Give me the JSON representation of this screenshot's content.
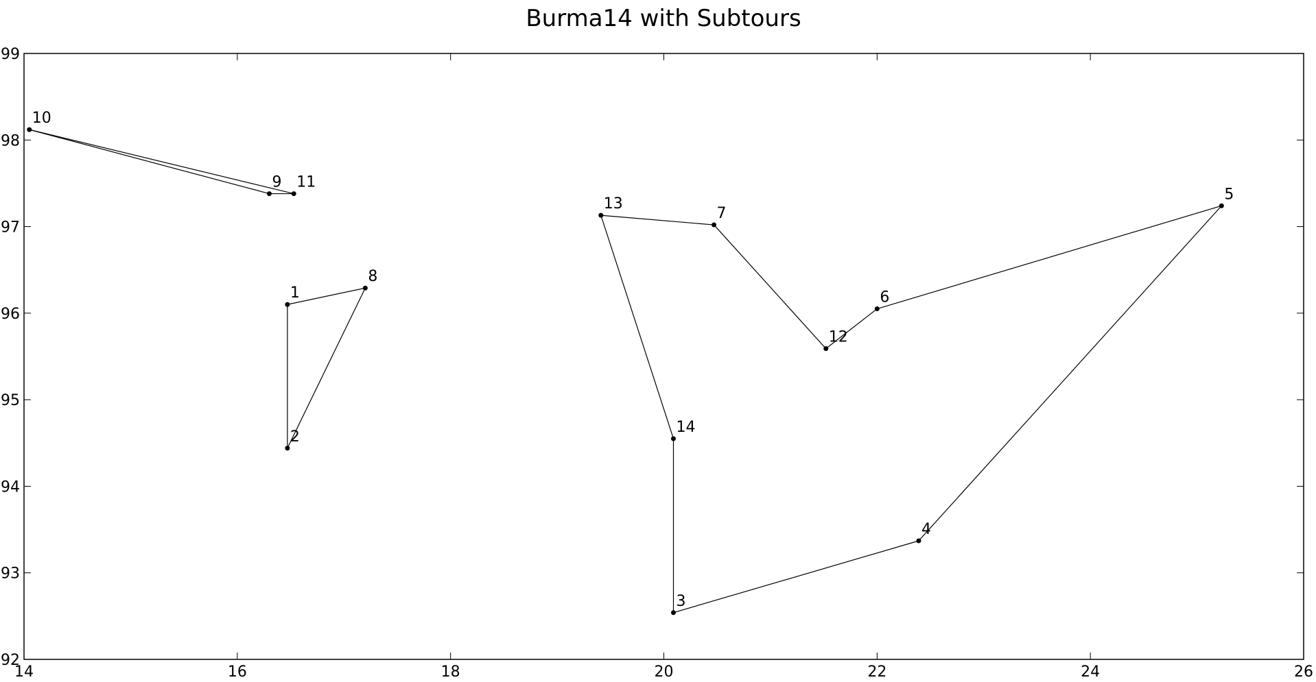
{
  "chart_data": {
    "type": "line",
    "title": "Burma14 with Subtours",
    "xlabel": "",
    "ylabel": "",
    "xlim": [
      14,
      26
    ],
    "ylim": [
      92,
      99
    ],
    "x_ticks": [
      14,
      16,
      18,
      20,
      22,
      24,
      26
    ],
    "y_ticks": [
      92,
      93,
      94,
      95,
      96,
      97,
      98,
      99
    ],
    "grid": false,
    "line_color": "#000000",
    "marker_color": "#000000",
    "nodes": [
      {
        "label": "1",
        "x": 16.47,
        "y": 96.1
      },
      {
        "label": "2",
        "x": 16.47,
        "y": 94.44
      },
      {
        "label": "3",
        "x": 20.09,
        "y": 92.54
      },
      {
        "label": "4",
        "x": 22.39,
        "y": 93.37
      },
      {
        "label": "5",
        "x": 25.23,
        "y": 97.24
      },
      {
        "label": "6",
        "x": 22.0,
        "y": 96.05
      },
      {
        "label": "7",
        "x": 20.47,
        "y": 97.02
      },
      {
        "label": "8",
        "x": 17.2,
        "y": 96.29
      },
      {
        "label": "9",
        "x": 16.3,
        "y": 97.38
      },
      {
        "label": "10",
        "x": 14.05,
        "y": 98.12
      },
      {
        "label": "11",
        "x": 16.53,
        "y": 97.38
      },
      {
        "label": "12",
        "x": 21.52,
        "y": 95.59
      },
      {
        "label": "13",
        "x": 19.41,
        "y": 97.13
      },
      {
        "label": "14",
        "x": 20.09,
        "y": 94.55
      }
    ],
    "subtours": [
      [
        "1",
        "8",
        "2"
      ],
      [
        "9",
        "10",
        "11"
      ],
      [
        "13",
        "7",
        "12",
        "6",
        "5",
        "4",
        "3",
        "14"
      ]
    ]
  }
}
